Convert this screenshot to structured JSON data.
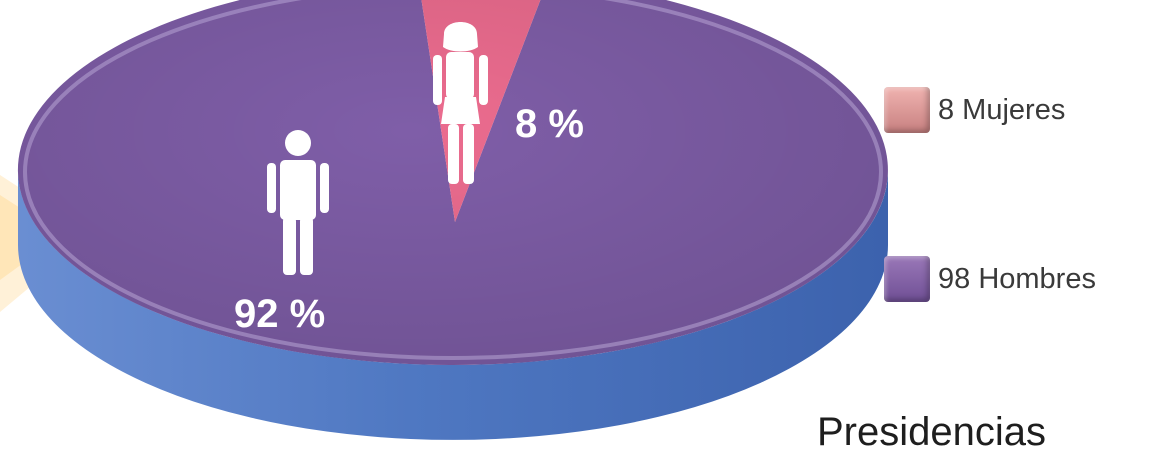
{
  "chart_data": {
    "type": "pie",
    "title": "Presidencias",
    "slices": [
      {
        "label": "Mujeres",
        "count": 8,
        "percent": 8,
        "percent_label": "8 %",
        "color": "#ec6c8f",
        "icon": "woman-icon"
      },
      {
        "label": "Hombres",
        "count": 98,
        "percent": 92,
        "percent_label": "92 %",
        "color": "#7f5ea8",
        "icon": "man-icon"
      }
    ],
    "legend": [
      {
        "text": "8 Mujeres",
        "color": "#e8a2a0"
      },
      {
        "text": "98 Hombres",
        "color": "#8a64a8"
      }
    ],
    "legend_placement": "right"
  }
}
